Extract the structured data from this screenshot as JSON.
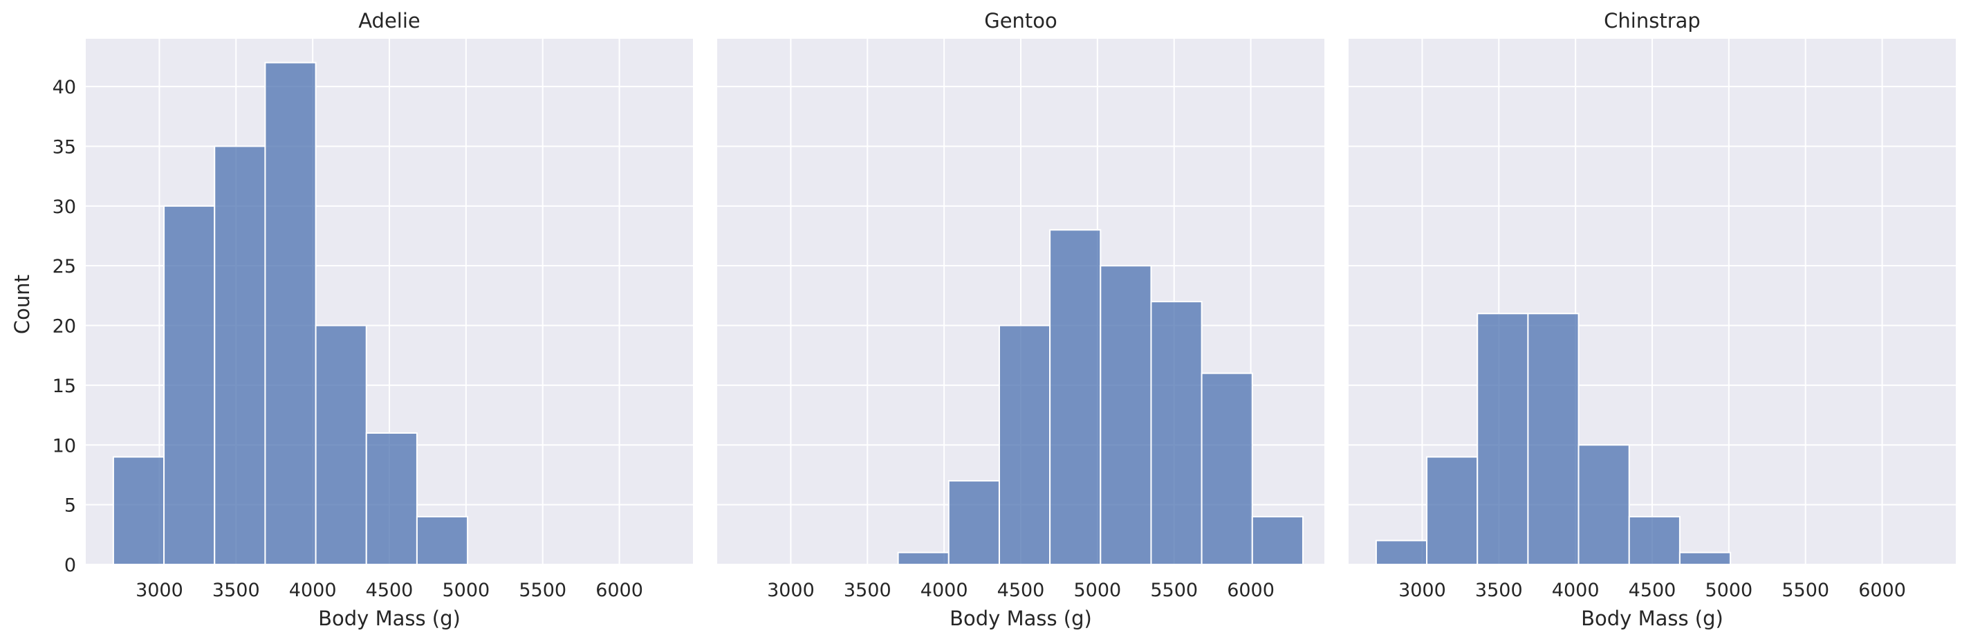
{
  "chart_data": {
    "type": "bar",
    "layout": "facet-grid",
    "shared_y": true,
    "xlabel": "Body Mass (g)",
    "ylabel": "Count",
    "xlim": [
      2520,
      6480
    ],
    "ylim": [
      0,
      44
    ],
    "xticks": [
      3000,
      3500,
      4000,
      4500,
      5000,
      5500,
      6000
    ],
    "yticks": [
      0,
      5,
      10,
      15,
      20,
      25,
      30,
      35,
      40
    ],
    "grid": true,
    "bar_color": "#4c72b0",
    "panel_background": "#eaeaf2",
    "grid_color": "#ffffff",
    "panels": [
      {
        "title": "Adelie",
        "bins": [
          {
            "x0": 2700,
            "x1": 3030,
            "count": 9
          },
          {
            "x0": 3030,
            "x1": 3360,
            "count": 30
          },
          {
            "x0": 3360,
            "x1": 3690,
            "count": 35
          },
          {
            "x0": 3690,
            "x1": 4020,
            "count": 42
          },
          {
            "x0": 4020,
            "x1": 4350,
            "count": 20
          },
          {
            "x0": 4350,
            "x1": 4680,
            "count": 11
          },
          {
            "x0": 4680,
            "x1": 5010,
            "count": 4
          }
        ]
      },
      {
        "title": "Gentoo",
        "bins": [
          {
            "x0": 3700,
            "x1": 4030,
            "count": 1
          },
          {
            "x0": 4030,
            "x1": 4360,
            "count": 7
          },
          {
            "x0": 4360,
            "x1": 4690,
            "count": 20
          },
          {
            "x0": 4690,
            "x1": 5020,
            "count": 28
          },
          {
            "x0": 5020,
            "x1": 5350,
            "count": 25
          },
          {
            "x0": 5350,
            "x1": 5680,
            "count": 22
          },
          {
            "x0": 5680,
            "x1": 6010,
            "count": 16
          },
          {
            "x0": 6010,
            "x1": 6340,
            "count": 4
          }
        ]
      },
      {
        "title": "Chinstrap",
        "bins": [
          {
            "x0": 2700,
            "x1": 3030,
            "count": 2
          },
          {
            "x0": 3030,
            "x1": 3360,
            "count": 9
          },
          {
            "x0": 3360,
            "x1": 3690,
            "count": 21
          },
          {
            "x0": 3690,
            "x1": 4020,
            "count": 21
          },
          {
            "x0": 4020,
            "x1": 4350,
            "count": 10
          },
          {
            "x0": 4350,
            "x1": 4680,
            "count": 4
          },
          {
            "x0": 4680,
            "x1": 5010,
            "count": 1
          }
        ]
      }
    ]
  }
}
